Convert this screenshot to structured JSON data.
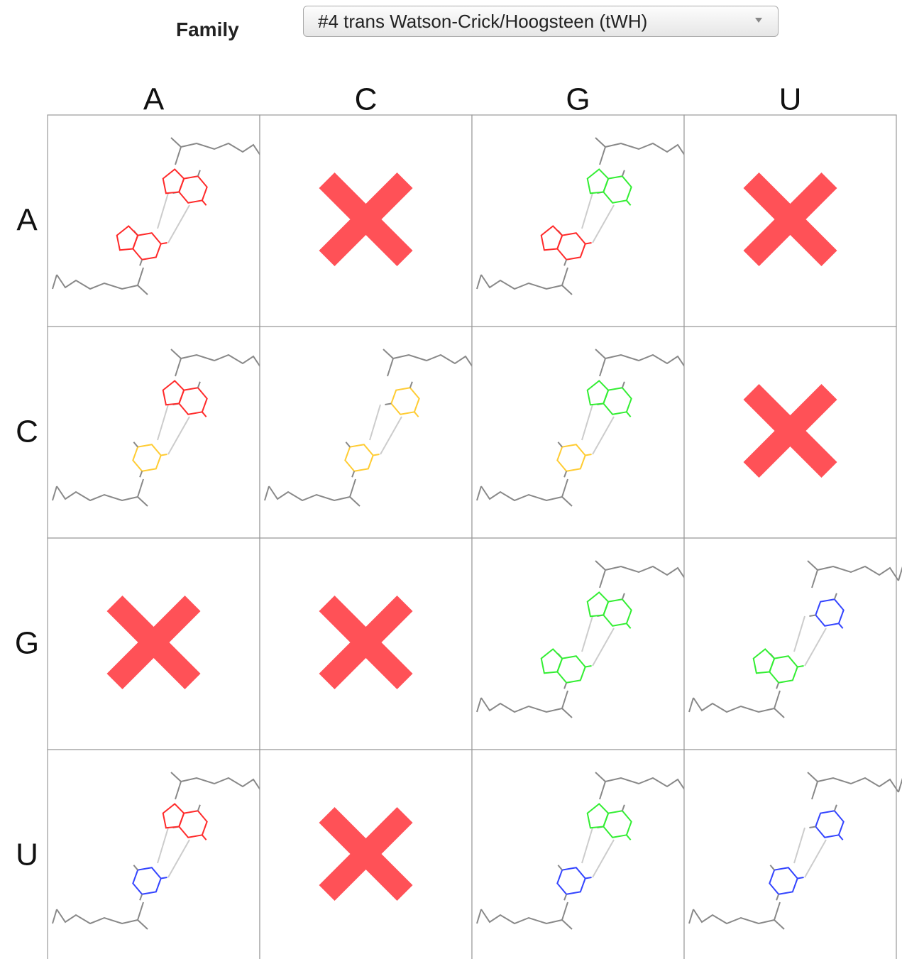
{
  "family_label": "Family",
  "family_select": "#4 trans Watson-Crick/Hoogsteen (tWH)",
  "grid": {
    "columns": [
      "A",
      "C",
      "G",
      "U"
    ],
    "rows": [
      "A",
      "C",
      "G",
      "U"
    ],
    "base_colors": [
      "#ff2a2a",
      "#ffcc33",
      "#33ee33",
      "#3344ff"
    ],
    "purine": [
      true,
      false,
      true,
      false
    ],
    "cells": [
      [
        true,
        false,
        true,
        false
      ],
      [
        true,
        true,
        true,
        false
      ],
      [
        false,
        false,
        true,
        true
      ],
      [
        true,
        false,
        true,
        true
      ]
    ]
  }
}
